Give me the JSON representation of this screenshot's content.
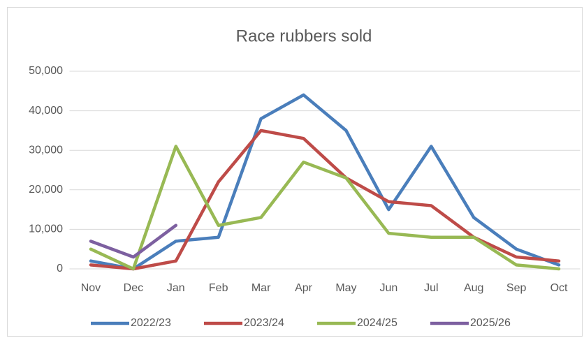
{
  "chart_data": {
    "type": "line",
    "title": "Race rubbers sold",
    "categories": [
      "Nov",
      "Dec",
      "Jan",
      "Feb",
      "Mar",
      "Apr",
      "May",
      "Jun",
      "Jul",
      "Aug",
      "Sep",
      "Oct"
    ],
    "series": [
      {
        "name": "2022/23",
        "color": "#4a7ebb",
        "values": [
          2000,
          0,
          7000,
          8000,
          38000,
          44000,
          35000,
          15000,
          31000,
          13000,
          5000,
          1000
        ]
      },
      {
        "name": "2023/24",
        "color": "#be4b48",
        "values": [
          1000,
          0,
          2000,
          22000,
          35000,
          33000,
          23000,
          17000,
          16000,
          8000,
          3000,
          2000
        ]
      },
      {
        "name": "2024/25",
        "color": "#98b954",
        "values": [
          5000,
          0,
          31000,
          11000,
          13000,
          27000,
          23000,
          9000,
          8000,
          8000,
          1000,
          0
        ]
      },
      {
        "name": "2025/26",
        "color": "#7d60a0",
        "values": [
          7000,
          3000,
          11000,
          null,
          null,
          null,
          null,
          null,
          null,
          null,
          null,
          null
        ]
      }
    ],
    "ylim": [
      0,
      50000
    ],
    "yticks": [
      0,
      {
        "value": 10000,
        "label": "10,000"
      },
      {
        "value": 20000,
        "label": "20,000"
      },
      {
        "value": 30000,
        "label": "30,000"
      },
      {
        "value": 40000,
        "label": "40,000"
      },
      {
        "value": 50000,
        "label": "50,000"
      }
    ],
    "grid": true,
    "legend": "bottom"
  }
}
